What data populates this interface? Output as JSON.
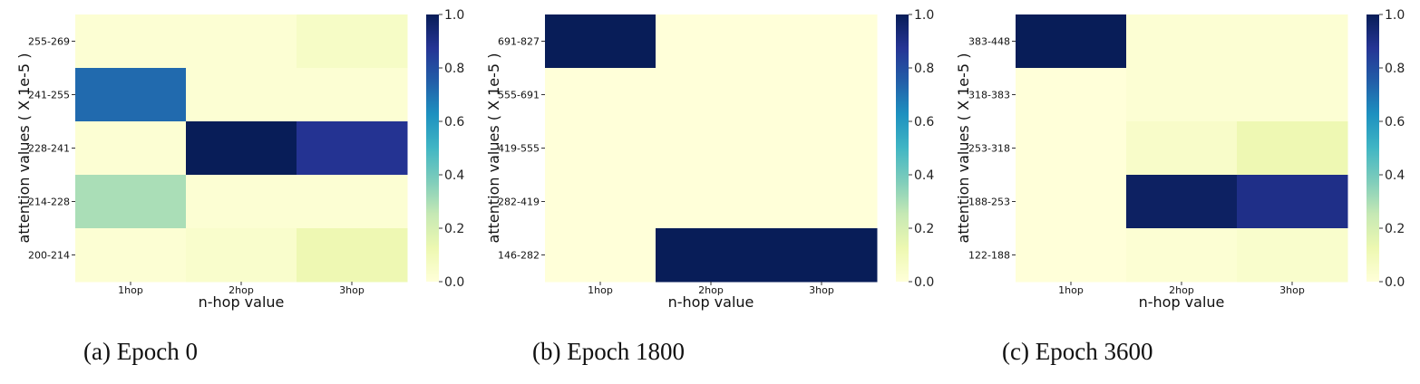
{
  "chart_data": [
    {
      "type": "heatmap",
      "caption": "(a) Epoch 0",
      "xlabel": "n-hop value",
      "ylabel": "attention values ( X 1e-5 )",
      "x_categories": [
        "1hop",
        "2hop",
        "3hop"
      ],
      "y_categories": [
        "255-269",
        "241-255",
        "228-241",
        "214-228",
        "200-214"
      ],
      "values": [
        [
          0.02,
          0.02,
          0.06
        ],
        [
          0.72,
          0.02,
          0.02
        ],
        [
          0.02,
          1.0,
          0.88
        ],
        [
          0.3,
          0.02,
          0.02
        ],
        [
          0.02,
          0.04,
          0.12
        ]
      ],
      "colorbar": {
        "min": 0.0,
        "max": 1.0,
        "ticks": [
          "0.0",
          "0.2",
          "0.4",
          "0.6",
          "0.8",
          "1.0"
        ]
      }
    },
    {
      "type": "heatmap",
      "caption": "(b) Epoch 1800",
      "xlabel": "n-hop value",
      "ylabel": "attention values ( X 1e-5 )",
      "x_categories": [
        "1hop",
        "2hop",
        "3hop"
      ],
      "y_categories": [
        "691-827",
        "555-691",
        "419-555",
        "282-419",
        "146-282"
      ],
      "values": [
        [
          1.0,
          0.0,
          0.0
        ],
        [
          0.0,
          0.0,
          0.0
        ],
        [
          0.0,
          0.0,
          0.0
        ],
        [
          0.0,
          0.0,
          0.0
        ],
        [
          0.0,
          1.0,
          1.0
        ]
      ],
      "colorbar": {
        "min": 0.0,
        "max": 1.0,
        "ticks": [
          "0.0",
          "0.2",
          "0.4",
          "0.6",
          "0.8",
          "1.0"
        ]
      }
    },
    {
      "type": "heatmap",
      "caption": "(c) Epoch 3600",
      "xlabel": "n-hop value",
      "ylabel": "attention values ( X 1e-5 )",
      "x_categories": [
        "1hop",
        "2hop",
        "3hop"
      ],
      "y_categories": [
        "383-448",
        "318-383",
        "253-318",
        "188-253",
        "122-188"
      ],
      "values": [
        [
          1.0,
          0.02,
          0.02
        ],
        [
          0.0,
          0.02,
          0.02
        ],
        [
          0.0,
          0.05,
          0.12
        ],
        [
          0.0,
          0.98,
          0.9
        ],
        [
          0.0,
          0.02,
          0.04
        ]
      ],
      "colorbar": {
        "min": 0.0,
        "max": 1.0,
        "ticks": [
          "0.0",
          "0.2",
          "0.4",
          "0.6",
          "0.8",
          "1.0"
        ]
      }
    }
  ],
  "colormap": {
    "name": "YlGnBu",
    "stops": [
      "#ffffd9",
      "#edf8b1",
      "#c7e9b4",
      "#7fcdbb",
      "#41b6c4",
      "#1d91c0",
      "#225ea8",
      "#253494",
      "#081d58"
    ]
  }
}
